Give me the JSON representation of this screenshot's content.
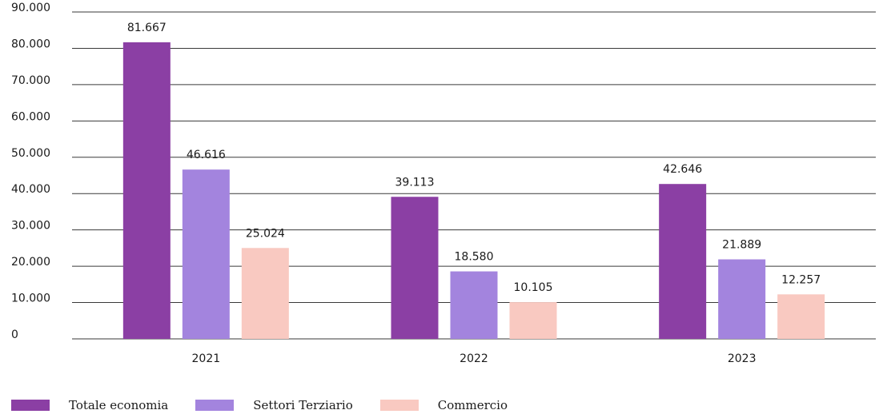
{
  "chart_data": {
    "type": "bar",
    "categories": [
      "2021",
      "2022",
      "2023"
    ],
    "series": [
      {
        "name": "Totale economia",
        "color": "#8b3fa4",
        "values": [
          81667,
          39113,
          42646
        ],
        "labels": [
          "81.667",
          "39.113",
          "42.646"
        ]
      },
      {
        "name": "Settori Terziario",
        "color": "#a384de",
        "values": [
          46616,
          18580,
          21889
        ],
        "labels": [
          "46.616",
          "18.580",
          "21.889"
        ]
      },
      {
        "name": "Commercio",
        "color": "#f9c9c1",
        "values": [
          25024,
          10105,
          12257
        ],
        "labels": [
          "25.024",
          "10.105",
          "12.257"
        ]
      }
    ],
    "ylim": [
      0,
      90000
    ],
    "yticks": [
      0,
      10000,
      20000,
      30000,
      40000,
      50000,
      60000,
      70000,
      80000,
      90000
    ],
    "ytick_labels": [
      "0",
      "10.000",
      "20.000",
      "30.000",
      "40.000",
      "50.000",
      "60.000",
      "70.000",
      "80.000",
      "90.000"
    ],
    "grid": true,
    "legend_position": "bottom-left"
  }
}
